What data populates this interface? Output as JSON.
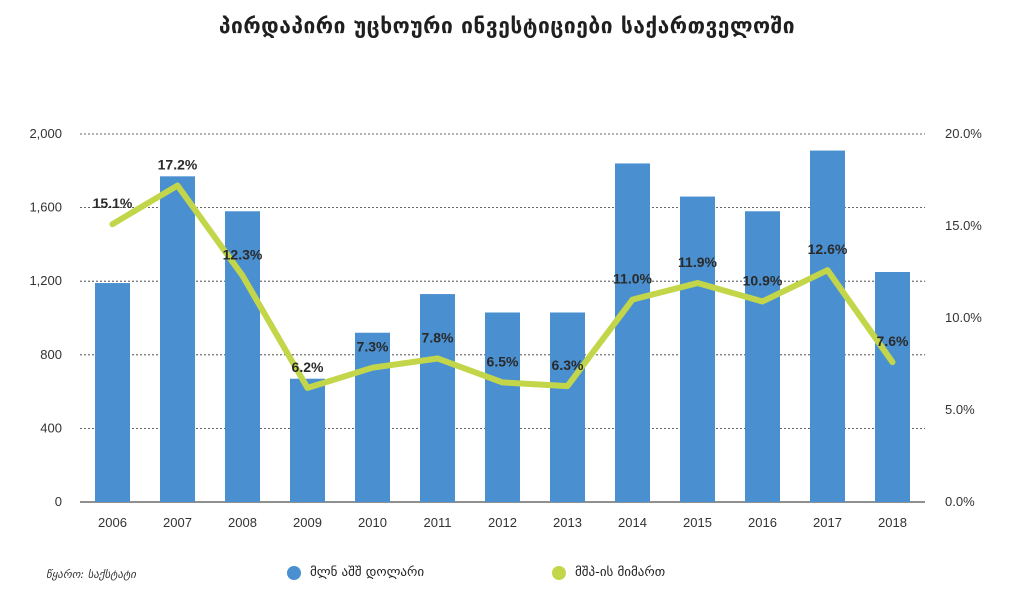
{
  "chart_data": {
    "type": "bar+line",
    "title": "პირდაპირი უცხოური ინვესტიციები საქართველოში",
    "categories": [
      "2006",
      "2007",
      "2008",
      "2009",
      "2010",
      "2011",
      "2012",
      "2013",
      "2014",
      "2015",
      "2016",
      "2017",
      "2018"
    ],
    "series": [
      {
        "name": "მლნ აშშ დოლარი",
        "type": "bar",
        "axis": "left",
        "color": "#4a90d0",
        "values": [
          1190,
          1770,
          1580,
          670,
          920,
          1130,
          1030,
          1030,
          1840,
          1660,
          1580,
          1910,
          1250
        ]
      },
      {
        "name": "მშპ-ის მიმართ",
        "type": "line",
        "axis": "right",
        "color": "#c3d64a",
        "values": [
          15.1,
          17.2,
          12.3,
          6.2,
          7.3,
          7.8,
          6.5,
          6.3,
          11.0,
          11.9,
          10.9,
          12.6,
          7.6
        ],
        "labels": [
          "15.1%",
          "17.2%",
          "12.3%",
          "6.2%",
          "7.3%",
          "7.8%",
          "6.5%",
          "6.3%",
          "11.0%",
          "11.9%",
          "10.9%",
          "12.6%",
          "7.6%"
        ]
      }
    ],
    "y_left": {
      "ylim": [
        0,
        2000
      ],
      "ticks": [
        0,
        400,
        800,
        1200,
        1600,
        2000
      ],
      "tick_labels": [
        "0",
        "400",
        "800",
        "1,200",
        "1,600",
        "2,000"
      ]
    },
    "y_right": {
      "ylim": [
        0,
        20
      ],
      "ticks": [
        0,
        5,
        10,
        15,
        20
      ],
      "tick_labels": [
        "0.0%",
        "5.0%",
        "10.0%",
        "15.0%",
        "20.0%"
      ]
    },
    "grid": "dashed horizontal",
    "legend_position": "bottom"
  },
  "source_note": "წყარო: საქსტატი"
}
